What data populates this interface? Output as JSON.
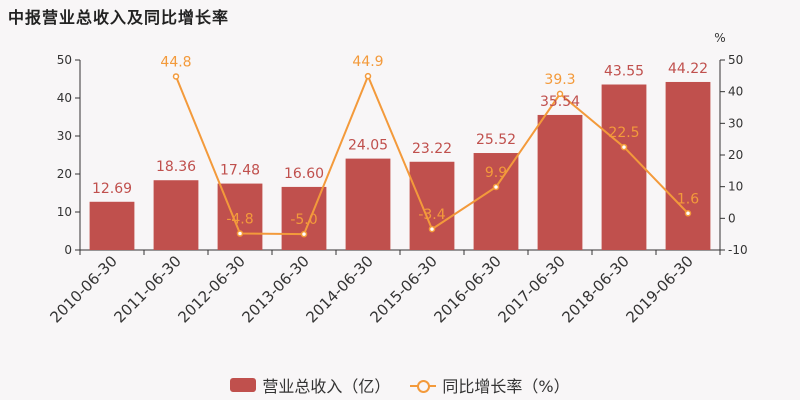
{
  "title": "中报营业总收入及同比增长率",
  "colors": {
    "bar": "#c0504d",
    "line": "#f39a3b",
    "bar_label": "#c0504d",
    "line_label": "#f39a3b"
  },
  "chart_data": {
    "type": "bar",
    "categories": [
      "2010-06-30",
      "2011-06-30",
      "2012-06-30",
      "2013-06-30",
      "2014-06-30",
      "2015-06-30",
      "2016-06-30",
      "2017-06-30",
      "2018-06-30",
      "2019-06-30"
    ],
    "series": [
      {
        "name": "营业总收入（亿）",
        "type": "bar",
        "axis": "left",
        "values": [
          12.69,
          18.36,
          17.48,
          16.6,
          24.05,
          23.22,
          25.52,
          35.54,
          43.55,
          44.22
        ],
        "labels": [
          "12.69",
          "18.36",
          "17.48",
          "16.60",
          "24.05",
          "23.22",
          "25.52",
          "35.54",
          "43.55",
          "44.22"
        ]
      },
      {
        "name": "同比增长率（%）",
        "type": "line",
        "axis": "right",
        "values": [
          null,
          44.8,
          -4.8,
          -5.0,
          44.9,
          -3.4,
          9.9,
          39.3,
          22.5,
          1.6
        ],
        "labels": [
          "",
          "44.8",
          "-4.8",
          "-5.0",
          "44.9",
          "-3.4",
          "9.9",
          "39.3",
          "22.5",
          "1.6"
        ]
      }
    ],
    "y_left": {
      "range": [
        0,
        50
      ],
      "ticks": [
        "0",
        "10",
        "20",
        "30",
        "40",
        "50"
      ]
    },
    "y_right": {
      "range": [
        -10,
        50
      ],
      "ticks": [
        "-10",
        "0",
        "10",
        "20",
        "30",
        "40",
        "50"
      ],
      "unit": "%"
    },
    "grid": false,
    "legend_position": "bottom"
  },
  "legend": {
    "bar_label": "营业总收入（亿）",
    "line_label": "同比增长率（%）"
  }
}
